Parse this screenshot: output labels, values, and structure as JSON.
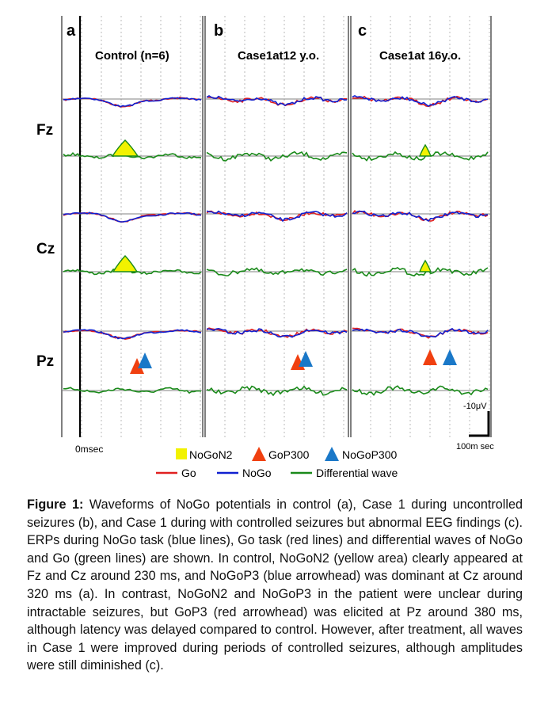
{
  "panels": [
    {
      "letter": "a",
      "title": "Control (n=6)"
    },
    {
      "letter": "b",
      "title": "Case1at12 y.o."
    },
    {
      "letter": "c",
      "title": "Case1at 16y.o."
    }
  ],
  "electrodes": [
    "Fz",
    "Cz",
    "Pz"
  ],
  "axis": {
    "time_origin_label": "0msec",
    "scale_time_label": "100m sec",
    "scale_amp_label": "-10μV"
  },
  "legend": {
    "nogon2": "NoGoN2",
    "gop300": "GoP300",
    "nogop300": "NoGoP300",
    "go": "Go",
    "nogo": "NoGo",
    "diff": "Differential wave"
  },
  "colors": {
    "go": "#e02020",
    "nogo": "#1020d0",
    "diff": "#1a8a1a",
    "highlight": "#f2f200",
    "gop_marker": "#f04010",
    "nogop_marker": "#1a78c8",
    "grid": "#808080"
  },
  "caption": {
    "label": "Figure 1:",
    "text": "Waveforms of NoGo potentials in control (a), Case 1 during uncontrolled seizures (b), and Case 1 during with controlled seizures but abnormal EEG findings (c). ERPs during NoGo task (blue lines), Go task (red lines) and differential waves of NoGo and Go (green lines) are shown. In control, NoGoN2 (yellow area) clearly appeared at Fz and Cz around 230 ms, and NoGoP3 (blue arrowhead) was dominant at Cz around 320 ms (a). In contrast, NoGoN2 and NoGoP3 in the patient were unclear during intractable seizures, but GoP3 (red arrowhead) was elicited at Pz around 380 ms, although latency was delayed compared to control. However, after treatment, all waves in Case 1 were improved during periods of controlled seizures, although amplitudes were still diminished (c)."
  }
}
